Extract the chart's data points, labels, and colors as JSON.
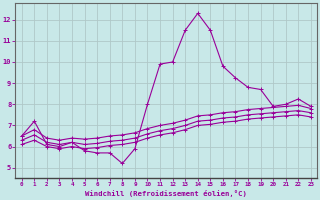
{
  "xlabel": "Windchill (Refroidissement éolien,°C)",
  "background_color": "#c8e8e8",
  "line_color": "#990099",
  "grid_color": "#b0c8c8",
  "x_hours": [
    0,
    1,
    2,
    3,
    4,
    5,
    6,
    7,
    8,
    9,
    10,
    11,
    12,
    13,
    14,
    15,
    16,
    17,
    18,
    19,
    20,
    21,
    22,
    23
  ],
  "main_y": [
    6.5,
    7.2,
    6.1,
    6.0,
    6.2,
    5.8,
    5.7,
    5.7,
    5.2,
    5.9,
    8.0,
    9.9,
    10.0,
    11.5,
    12.3,
    11.5,
    9.8,
    9.25,
    8.8,
    8.7,
    7.9,
    8.0,
    8.25,
    7.9
  ],
  "line2_y": [
    6.5,
    6.8,
    6.4,
    6.3,
    6.4,
    6.35,
    6.4,
    6.5,
    6.55,
    6.65,
    6.85,
    7.0,
    7.1,
    7.25,
    7.45,
    7.5,
    7.6,
    7.65,
    7.75,
    7.8,
    7.85,
    7.9,
    7.95,
    7.8
  ],
  "line3_y": [
    6.3,
    6.55,
    6.2,
    6.1,
    6.2,
    6.1,
    6.15,
    6.25,
    6.3,
    6.4,
    6.6,
    6.75,
    6.85,
    7.0,
    7.2,
    7.25,
    7.35,
    7.4,
    7.5,
    7.55,
    7.6,
    7.65,
    7.7,
    7.6
  ],
  "line4_y": [
    6.1,
    6.3,
    6.0,
    5.9,
    6.0,
    5.9,
    5.95,
    6.05,
    6.1,
    6.2,
    6.4,
    6.55,
    6.65,
    6.8,
    7.0,
    7.05,
    7.15,
    7.2,
    7.3,
    7.35,
    7.4,
    7.45,
    7.5,
    7.4
  ],
  "ylim": [
    4.5,
    12.8
  ],
  "yticks": [
    5,
    6,
    7,
    8,
    9,
    10,
    11,
    12
  ],
  "xlim": [
    -0.5,
    23.5
  ],
  "xticks": [
    0,
    1,
    2,
    3,
    4,
    5,
    6,
    7,
    8,
    9,
    10,
    11,
    12,
    13,
    14,
    15,
    16,
    17,
    18,
    19,
    20,
    21,
    22,
    23
  ]
}
